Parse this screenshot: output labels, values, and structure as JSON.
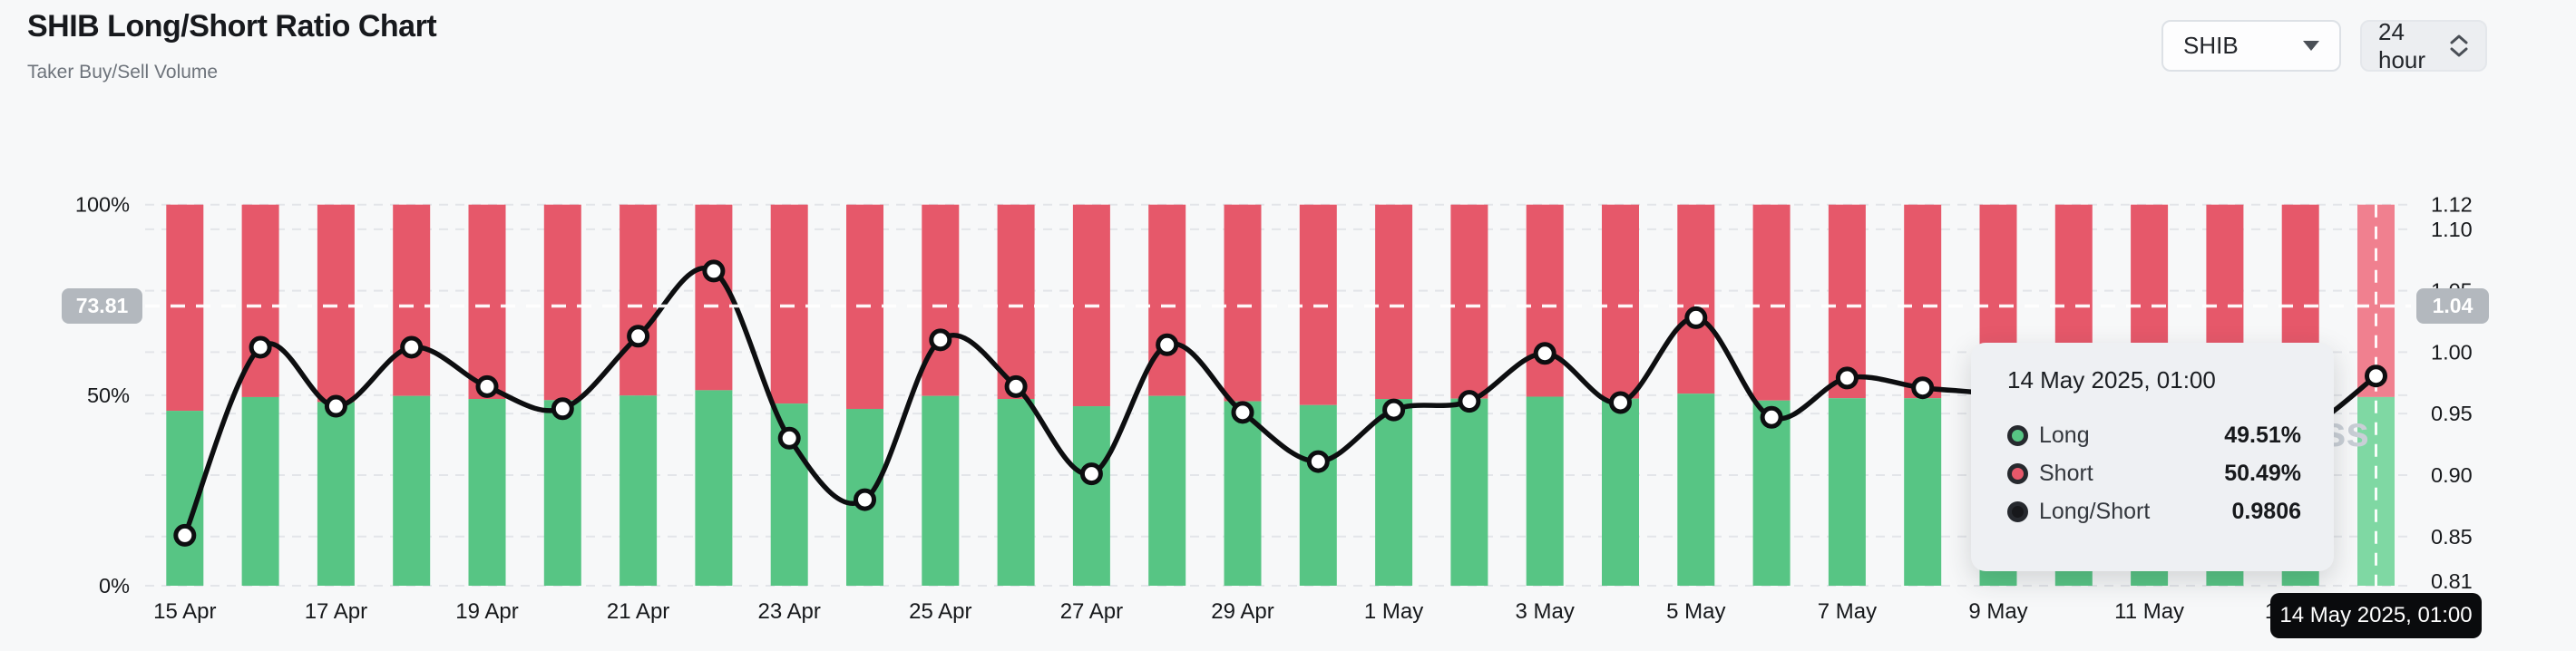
{
  "header": {
    "title": "SHIB Long/Short Ratio Chart",
    "subtitle": "Taker Buy/Sell Volume"
  },
  "controls": {
    "symbol": "SHIB",
    "symbol_icon": "caret-down-icon",
    "interval": "24 hour",
    "interval_icon": "up-down-chevrons-icon"
  },
  "watermark": "coinglass",
  "crosshair": {
    "left_badge": "73.81",
    "right_badge": "1.04",
    "x_badge": "14 May 2025, 01:00"
  },
  "tooltip": {
    "title": "14 May 2025, 01:00",
    "rows": [
      {
        "label": "Long",
        "value": "49.51%",
        "dot_color": "#57c584"
      },
      {
        "label": "Short",
        "value": "50.49%",
        "dot_color": "#e6586a"
      },
      {
        "label": "Long/Short",
        "value": "0.9806",
        "dot_color": "#17181b"
      }
    ]
  },
  "chart_data": {
    "type": "stacked-bar+line",
    "title": "SHIB Long/Short Ratio Chart",
    "categories": [
      "15 Apr",
      "16 Apr",
      "17 Apr",
      "18 Apr",
      "19 Apr",
      "20 Apr",
      "21 Apr",
      "22 Apr",
      "23 Apr",
      "24 Apr",
      "25 Apr",
      "26 Apr",
      "27 Apr",
      "28 Apr",
      "29 Apr",
      "30 Apr",
      "1 May",
      "2 May",
      "3 May",
      "4 May",
      "5 May",
      "6 May",
      "7 May",
      "8 May",
      "9 May",
      "10 May",
      "11 May",
      "12 May",
      "13 May",
      "14 May"
    ],
    "x_tick_labels": [
      "15 Apr",
      "17 Apr",
      "19 Apr",
      "21 Apr",
      "23 Apr",
      "25 Apr",
      "27 Apr",
      "29 Apr",
      "1 May",
      "3 May",
      "5 May",
      "7 May",
      "9 May",
      "11 May",
      "13 May"
    ],
    "x_tick_every": 2,
    "series": [
      {
        "name": "Long",
        "unit": "%",
        "color": "#57c584",
        "values": [
          45.9,
          49.5,
          48.2,
          49.8,
          49.0,
          48.7,
          49.9,
          51.3,
          47.8,
          46.4,
          49.8,
          49.0,
          47.1,
          49.8,
          48.4,
          47.4,
          49.0,
          49.1,
          49.6,
          49.1,
          50.4,
          48.6,
          49.2,
          49.2,
          49.0,
          48.8,
          49.0,
          49.3,
          49.6,
          49.51
        ]
      },
      {
        "name": "Short",
        "unit": "%",
        "color": "#e6586a",
        "values": [
          54.1,
          50.5,
          51.8,
          50.2,
          51.0,
          51.3,
          50.1,
          48.7,
          52.2,
          53.6,
          50.2,
          51.0,
          52.9,
          50.2,
          51.6,
          52.6,
          51.0,
          50.9,
          50.4,
          50.9,
          49.6,
          51.4,
          50.8,
          50.8,
          51.0,
          51.2,
          51.0,
          50.7,
          50.4,
          50.49
        ]
      },
      {
        "name": "Long/Short",
        "unit": "ratio",
        "color": "#0d0e10",
        "values": [
          0.851,
          1.004,
          0.956,
          1.004,
          0.972,
          0.954,
          1.013,
          1.066,
          0.93,
          0.88,
          1.01,
          0.972,
          0.901,
          1.006,
          0.951,
          0.911,
          0.953,
          0.96,
          0.999,
          0.959,
          1.028,
          0.947,
          0.979,
          0.971,
          0.965,
          0.95,
          0.938,
          0.93,
          0.935,
          0.9806
        ]
      }
    ],
    "highlighted_index": 29,
    "left_axis": {
      "ticks": [
        "100%",
        "50%",
        "0%"
      ],
      "tick_values": [
        100,
        50,
        0
      ],
      "ylim": [
        0,
        100
      ]
    },
    "right_axis": {
      "ticks": [
        "1.12",
        "1.10",
        "1.05",
        "1.00",
        "0.95",
        "0.90",
        "0.85",
        "0.81"
      ],
      "tick_values": [
        1.12,
        1.1,
        1.05,
        1.0,
        0.95,
        0.9,
        0.85,
        0.81
      ],
      "ylim": [
        0.81,
        1.12
      ]
    },
    "grid": "dashed horizontal",
    "legend": "none",
    "colors": {
      "long": "#57c584",
      "short": "#e6586a",
      "long_highlight": "#7fd8a3",
      "short_highlight": "#f0808f",
      "line": "#0d0e10",
      "grid": "#e3e5e9",
      "crosshair": "#ffffff",
      "axis_text": "#17191c",
      "watermark_text": "#c9cfd6"
    }
  }
}
